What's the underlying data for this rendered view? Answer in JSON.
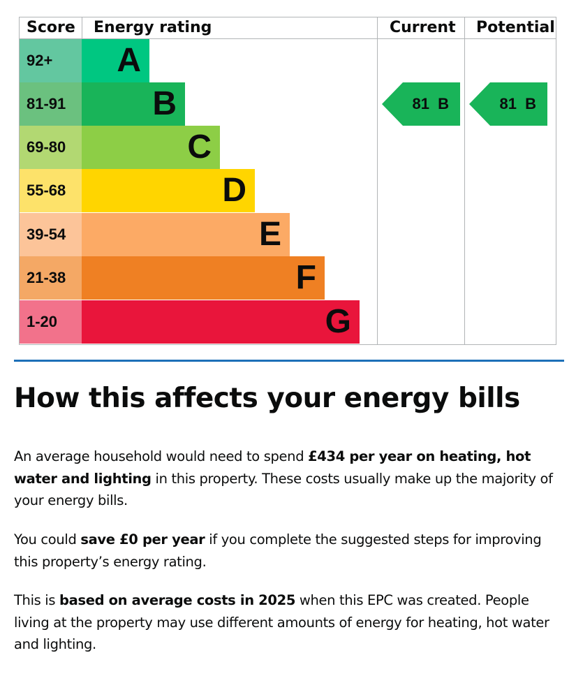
{
  "table": {
    "headers": {
      "score": "Score",
      "rating": "Energy rating",
      "current": "Current",
      "potential": "Potential"
    },
    "bands": [
      {
        "letter": "A",
        "score": "92+",
        "score_color": "#63c7a0",
        "color": "#00c781"
      },
      {
        "letter": "B",
        "score": "81-91",
        "score_color": "#6bc17f",
        "color": "#19b459"
      },
      {
        "letter": "C",
        "score": "69-80",
        "score_color": "#b2d872",
        "color": "#8dce46"
      },
      {
        "letter": "D",
        "score": "55-68",
        "score_color": "#fde26a",
        "color": "#ffd500"
      },
      {
        "letter": "E",
        "score": "39-54",
        "score_color": "#fcc499",
        "color": "#fcaa65"
      },
      {
        "letter": "F",
        "score": "21-38",
        "score_color": "#f4a865",
        "color": "#ef8023"
      },
      {
        "letter": "G",
        "score": "1-20",
        "score_color": "#f2728b",
        "color": "#e9153b"
      }
    ],
    "current": {
      "score": "81",
      "letter": "B",
      "color": "#19b459"
    },
    "potential": {
      "score": "81",
      "letter": "B",
      "color": "#19b459"
    }
  },
  "section": {
    "title": "How this affects your energy bills",
    "p1": {
      "t1": "An average household would need to spend ",
      "b1": "£434 per year on heating, hot water and lighting",
      "t2": " in this property. These costs usually make up the majority of your energy bills."
    },
    "p2": {
      "t1": "You could ",
      "b1": "save £0 per year",
      "t2": " if you complete the suggested steps for improving this property’s energy rating."
    },
    "p3": {
      "t1": "This is ",
      "b1": "based on average costs in 2025",
      "t2": " when this EPC was created. People living at the property may use different amounts of energy for heating, hot water and lighting."
    }
  }
}
